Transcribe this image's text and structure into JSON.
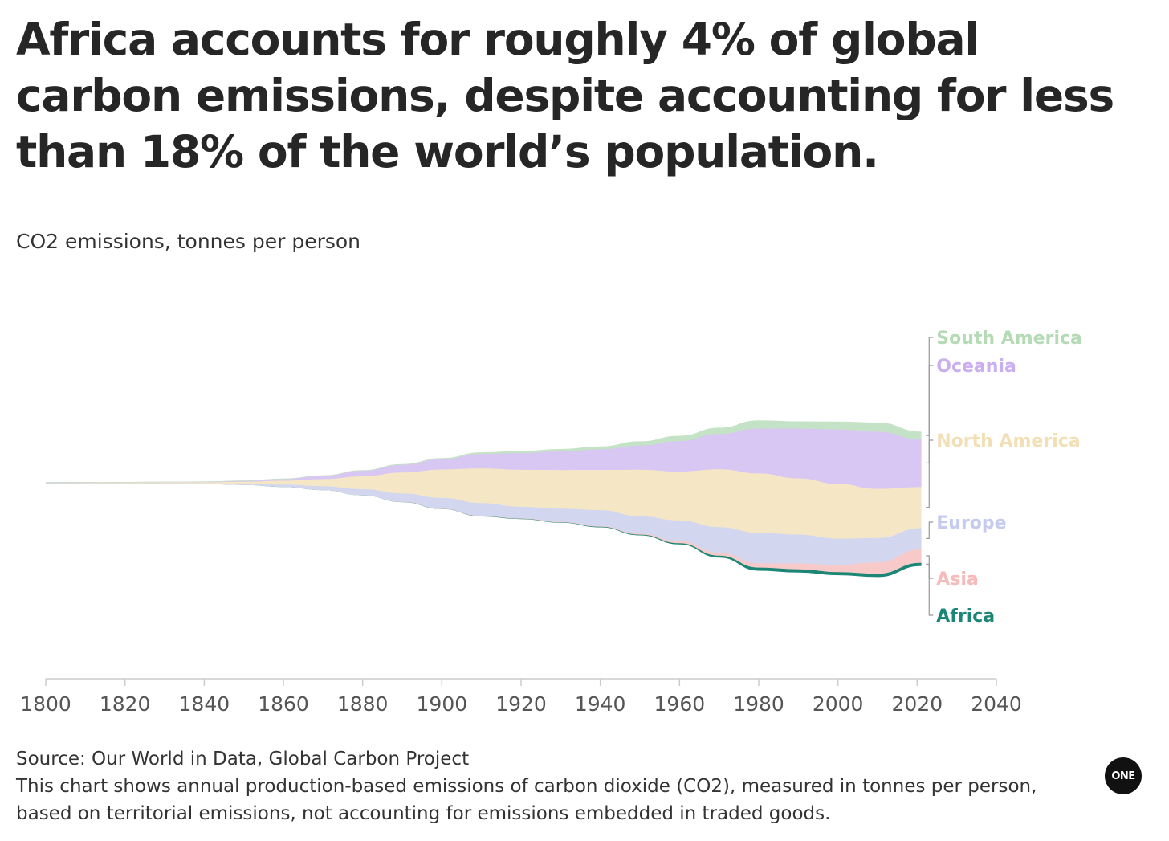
{
  "title": "Africa accounts for roughly 4% of global carbon emissions, despite accounting for less than 18% of the world’s population.",
  "subtitle": "CO2 emissions, tonnes per person",
  "source": "Source: Our World in Data, Global Carbon Project",
  "note": "This chart shows annual production-based emissions of carbon dioxide (CO2), measured in tonnes per person, based on territorial emissions, not accounting for emissions embedded in traded goods.",
  "logo_text": "ONE",
  "chart_data": {
    "type": "area",
    "stacking": "streamgraph (wiggle, centred baseline)",
    "title": "CO2 emissions, tonnes per person",
    "xlabel": "",
    "ylabel": "",
    "xlim": [
      1800,
      2040
    ],
    "x_ticks": [
      1800,
      1820,
      1840,
      1860,
      1880,
      1900,
      1920,
      1940,
      1960,
      1980,
      2000,
      2020,
      2040
    ],
    "grid": false,
    "legend": "inline labels at right end of streams",
    "x": [
      1800,
      1820,
      1840,
      1850,
      1860,
      1870,
      1880,
      1890,
      1900,
      1910,
      1920,
      1930,
      1940,
      1950,
      1960,
      1970,
      1980,
      1990,
      2000,
      2010,
      2021
    ],
    "series": [
      {
        "name": "Africa",
        "color": "#1c8676",
        "values": [
          0,
          0,
          0,
          0.005,
          0.01,
          0.02,
          0.03,
          0.04,
          0.06,
          0.09,
          0.12,
          0.14,
          0.17,
          0.24,
          0.37,
          0.6,
          0.97,
          1.0,
          0.98,
          1.05,
          0.98
        ]
      },
      {
        "name": "Asia",
        "color": "#f7c9c9",
        "values": [
          0,
          0,
          0,
          0.005,
          0.01,
          0.02,
          0.03,
          0.04,
          0.06,
          0.08,
          0.1,
          0.14,
          0.18,
          0.3,
          0.6,
          0.9,
          1.3,
          1.8,
          2.2,
          3.5,
          4.2
        ]
      },
      {
        "name": "Europe",
        "color": "#d2d7ef",
        "values": [
          0.1,
          0.15,
          0.25,
          0.4,
          0.7,
          1.2,
          1.9,
          2.6,
          3.4,
          4.0,
          3.6,
          4.1,
          5.0,
          5.4,
          6.5,
          8.0,
          9.5,
          9.0,
          8.2,
          7.6,
          6.6
        ]
      },
      {
        "name": "North America",
        "color": "#f5e7c6",
        "values": [
          0.1,
          0.2,
          0.35,
          0.6,
          1.2,
          2.2,
          4.0,
          6.5,
          8.8,
          10.8,
          11.5,
          12.0,
          12.5,
          14.5,
          15.2,
          18.0,
          18.5,
          17.5,
          17.0,
          15.3,
          12.8
        ]
      },
      {
        "name": "Oceania",
        "color": "#d9c7f3",
        "values": [
          0,
          0,
          0.05,
          0.2,
          0.5,
          1.0,
          1.7,
          2.4,
          3.2,
          4.5,
          5.2,
          5.8,
          6.4,
          7.5,
          9.5,
          11.0,
          14.0,
          15.5,
          17.0,
          17.8,
          14.8
        ]
      },
      {
        "name": "South America",
        "color": "#c4e2c5",
        "values": [
          0,
          0,
          0,
          0,
          0.01,
          0.03,
          0.06,
          0.1,
          0.2,
          0.35,
          0.5,
          0.6,
          0.8,
          1.2,
          1.5,
          1.8,
          2.4,
          2.1,
          2.3,
          2.7,
          2.3
        ]
      }
    ],
    "label_colors": {
      "South America": "#b5dbb6",
      "Oceania": "#c9aef0",
      "North America": "#f2dfb5",
      "Europe": "#c5cbee",
      "Asia": "#f6baba",
      "Africa": "#1c8676"
    },
    "axis_color": "#cccccc",
    "tick_label_color": "#555555"
  }
}
